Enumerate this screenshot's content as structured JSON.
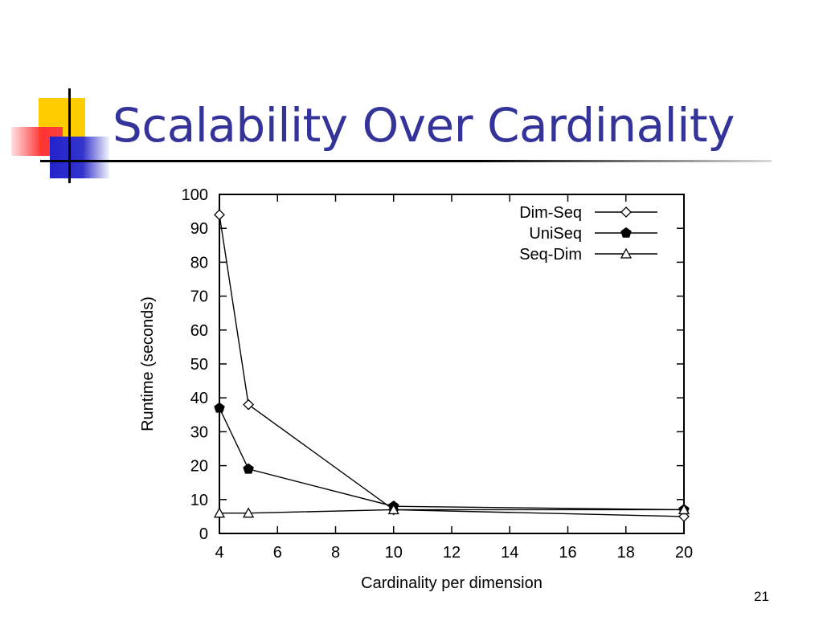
{
  "slide": {
    "title": "Scalability Over Cardinality",
    "page_number": "21"
  },
  "colors": {
    "title": "#333399",
    "deco_yellow": "#ffcc00",
    "deco_red": "#ff3333",
    "deco_blue": "#3333cc"
  },
  "chart_data": {
    "type": "line",
    "title": "",
    "xlabel": "Cardinality per dimension",
    "ylabel": "Runtime (seconds)",
    "xlim": [
      4,
      20
    ],
    "ylim": [
      0,
      100
    ],
    "x_ticks": [
      4,
      6,
      8,
      10,
      12,
      14,
      16,
      18,
      20
    ],
    "y_ticks": [
      0,
      10,
      20,
      30,
      40,
      50,
      60,
      70,
      80,
      90,
      100
    ],
    "grid": false,
    "legend_position": "top-right",
    "series": [
      {
        "name": "Dim-Seq",
        "marker": "diamond-open",
        "x": [
          4,
          5,
          10,
          20
        ],
        "y": [
          94,
          38,
          7,
          5
        ]
      },
      {
        "name": "UniSeq",
        "marker": "pentagon-filled",
        "x": [
          4,
          5,
          10,
          20
        ],
        "y": [
          37,
          19,
          8,
          7
        ]
      },
      {
        "name": "Seq-Dim",
        "marker": "triangle-open",
        "x": [
          4,
          5,
          10,
          20
        ],
        "y": [
          6,
          6,
          7,
          7
        ]
      }
    ]
  }
}
